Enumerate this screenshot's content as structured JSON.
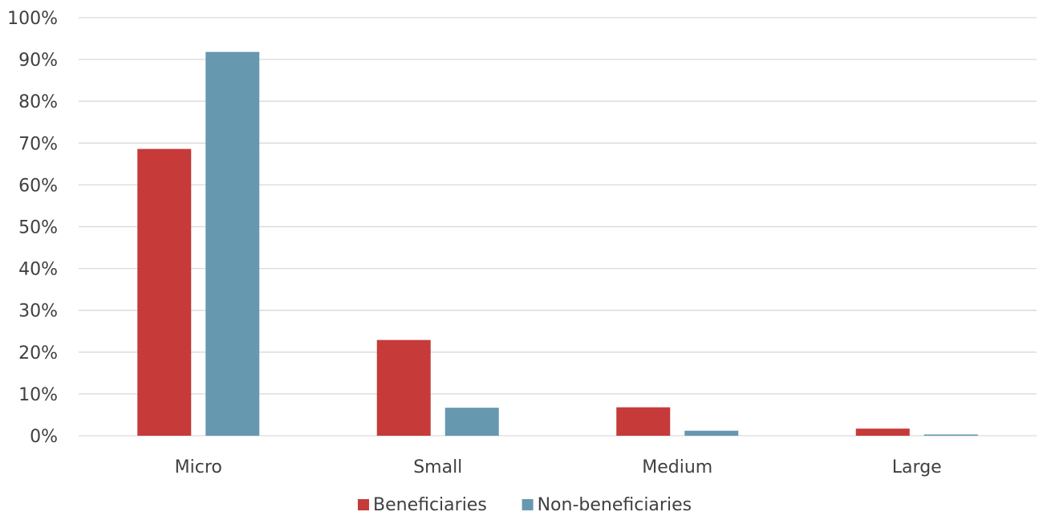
{
  "chart_data": {
    "type": "bar",
    "categories": [
      "Micro",
      "Small",
      "Medium",
      "Large"
    ],
    "series": [
      {
        "name": "Beneficiaries",
        "color": "#c63a3a",
        "values": [
          68.6,
          22.9,
          6.8,
          1.7
        ]
      },
      {
        "name": "Non-beneficiaries",
        "color": "#6699b0",
        "values": [
          91.8,
          6.7,
          1.2,
          0.3
        ]
      }
    ],
    "ylim": [
      0,
      100
    ],
    "y_ticks": [
      0,
      10,
      20,
      30,
      40,
      50,
      60,
      70,
      80,
      90,
      100
    ],
    "y_tick_format": "percent",
    "grid": true,
    "gridline_color": "#d9d9d9",
    "legend_position": "bottom-center"
  }
}
